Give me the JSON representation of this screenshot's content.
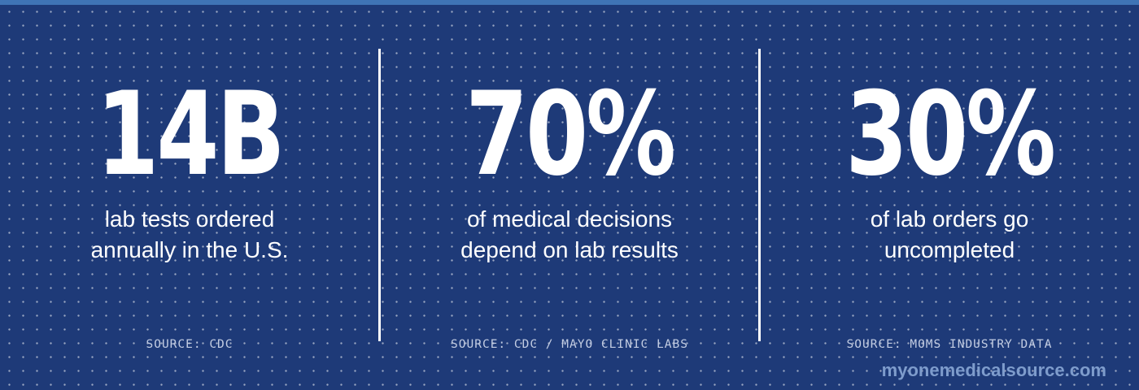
{
  "colors": {
    "background": "#1e3a78",
    "top_bar": "#3f74b5",
    "text": "#ffffff",
    "source_text": "#c3cde3",
    "url_text": "#7e9ccc"
  },
  "stats": [
    {
      "value": "14B",
      "description": [
        "lab tests ordered",
        "annually in the U.S."
      ],
      "source": "SOURCE: CDC"
    },
    {
      "value": "70%",
      "description": [
        "of medical decisions",
        "depend on lab results"
      ],
      "source": "SOURCE: CDC / MAYO CLINIC LABS"
    },
    {
      "value": "30%",
      "description": [
        "of lab orders go",
        "uncompleted"
      ],
      "source": "SOURCE: MOMS INDUSTRY DATA"
    }
  ],
  "footer": {
    "url": "myonemedicalsource.com"
  }
}
